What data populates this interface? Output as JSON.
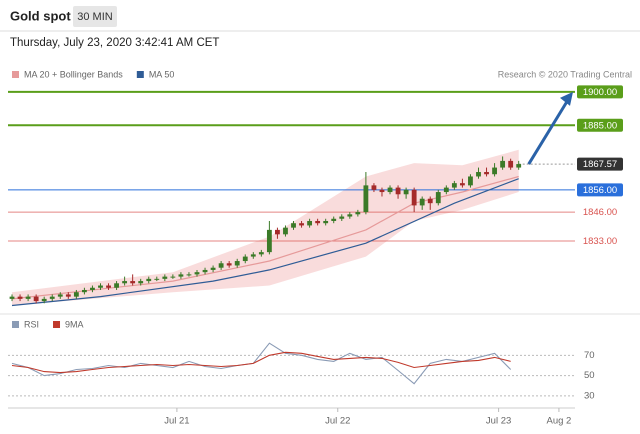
{
  "header": {
    "title": "Gold spot",
    "timeframe": "30 MIN",
    "timestamp": "Thursday, July 23, 2020 3:42:41 AM CET"
  },
  "chart_data": [
    {
      "type": "candlestick",
      "credit": "Research © 2020 Trading Central",
      "xlim": [
        -0.5,
        70
      ],
      "ylim": [
        1802,
        1904
      ],
      "xticks": [
        {
          "value": 20.5,
          "label": "Jul 21"
        },
        {
          "value": 40.5,
          "label": "Jul 22"
        },
        {
          "value": 60.5,
          "label": "Jul 23"
        },
        {
          "value": 68,
          "label": "Aug 2"
        }
      ],
      "up_color": "#3b7a28",
      "down_color": "#a52a2a",
      "candles": {
        "open": [
          1807,
          1808,
          1807,
          1808,
          1806,
          1807,
          1808,
          1809,
          1808,
          1810,
          1811,
          1812,
          1813,
          1812,
          1814,
          1815,
          1814,
          1815,
          1816,
          1816,
          1817,
          1817,
          1818,
          1818,
          1819,
          1820,
          1821,
          1823,
          1822,
          1824,
          1826,
          1827,
          1828,
          1838,
          1836,
          1839,
          1841,
          1840,
          1842,
          1841,
          1842,
          1843,
          1844,
          1845,
          1846,
          1858,
          1856,
          1855,
          1857,
          1854,
          1856,
          1849,
          1852,
          1850,
          1855,
          1857,
          1859,
          1858,
          1862,
          1864,
          1863,
          1866,
          1869,
          1866
        ],
        "high": [
          1809,
          1809,
          1809,
          1809,
          1808,
          1809,
          1810,
          1810,
          1811,
          1812,
          1813,
          1814,
          1814,
          1815,
          1817,
          1818,
          1816,
          1817,
          1817,
          1818,
          1818,
          1819,
          1819,
          1820,
          1821,
          1822,
          1824,
          1824,
          1825,
          1827,
          1828,
          1829,
          1842,
          1839,
          1840,
          1842,
          1842,
          1843,
          1843,
          1843,
          1844,
          1845,
          1846,
          1847,
          1864,
          1859,
          1857,
          1858,
          1858,
          1857,
          1857,
          1853,
          1853,
          1856,
          1858,
          1860,
          1861,
          1863,
          1866,
          1866,
          1868,
          1871,
          1870,
          1869
        ],
        "low": [
          1806,
          1806,
          1806,
          1805,
          1805,
          1806,
          1807,
          1807,
          1807,
          1809,
          1810,
          1811,
          1811,
          1811,
          1813,
          1813,
          1813,
          1814,
          1815,
          1815,
          1816,
          1816,
          1817,
          1817,
          1818,
          1819,
          1820,
          1821,
          1821,
          1823,
          1825,
          1826,
          1827,
          1834,
          1835,
          1838,
          1839,
          1839,
          1840,
          1840,
          1841,
          1842,
          1843,
          1844,
          1845,
          1855,
          1853,
          1854,
          1852,
          1852,
          1846,
          1847,
          1847,
          1849,
          1854,
          1856,
          1857,
          1857,
          1861,
          1862,
          1862,
          1865,
          1865,
          1865
        ],
        "close": [
          1808,
          1807,
          1808,
          1806,
          1807,
          1808,
          1809,
          1808,
          1810,
          1811,
          1812,
          1813,
          1812,
          1814,
          1815,
          1814,
          1815,
          1816,
          1816,
          1817,
          1817,
          1818,
          1818,
          1819,
          1820,
          1821,
          1823,
          1822,
          1824,
          1826,
          1827,
          1828,
          1838,
          1836,
          1839,
          1841,
          1840,
          1842,
          1841,
          1842,
          1843,
          1844,
          1845,
          1846,
          1858,
          1856,
          1855,
          1857,
          1854,
          1856,
          1849,
          1852,
          1850,
          1855,
          1857,
          1859,
          1858,
          1862,
          1864,
          1863,
          1866,
          1869,
          1866,
          1867.57
        ]
      },
      "series": [
        {
          "name": "MA 20 + Bollinger Bands",
          "color": "#e69a9a",
          "band_color": "#f8d3d3",
          "x": [
            0,
            20,
            32,
            44,
            50,
            56,
            63
          ],
          "values": [
            1807,
            1815,
            1824,
            1838,
            1850,
            1855,
            1862
          ],
          "upper": [
            1810,
            1819,
            1835,
            1862,
            1868,
            1867,
            1874
          ],
          "lower": [
            1804,
            1810,
            1813,
            1826,
            1842,
            1847,
            1855
          ]
        },
        {
          "name": "MA 50",
          "color": "#2f5c96",
          "x": [
            0,
            11,
            25,
            32,
            44,
            55,
            63
          ],
          "values": [
            1804,
            1808,
            1815,
            1820,
            1832,
            1850,
            1861
          ]
        }
      ],
      "levels": [
        {
          "value": 1900,
          "label": "1900.00",
          "color": "#5a9e1a",
          "style": "box"
        },
        {
          "value": 1885,
          "label": "1885.00",
          "color": "#5a9e1a",
          "style": "box"
        },
        {
          "value": 1867.57,
          "label": "1867.57",
          "color": "#333333",
          "style": "current"
        },
        {
          "value": 1856,
          "label": "1856.00",
          "color": "#2a6fdb",
          "style": "box"
        },
        {
          "value": 1846,
          "label": "1846.00",
          "color": "#d9534f",
          "style": "text"
        },
        {
          "value": 1833,
          "label": "1833.00",
          "color": "#d9534f",
          "style": "text"
        }
      ]
    },
    {
      "type": "line",
      "xlim": [
        -0.5,
        70
      ],
      "ylim": [
        21,
        95
      ],
      "yticks": [
        70,
        50,
        30
      ],
      "grid": true,
      "x": [
        0,
        2,
        4,
        6,
        8,
        10,
        12,
        14,
        16,
        18,
        20,
        22,
        24,
        26,
        28,
        30,
        32,
        34,
        36,
        38,
        40,
        42,
        44,
        46,
        48,
        50,
        52,
        54,
        56,
        58,
        60,
        62
      ],
      "series": [
        {
          "name": "RSI",
          "color": "#8a9bb5",
          "values": [
            62,
            58,
            50,
            52,
            56,
            57,
            60,
            58,
            62,
            60,
            58,
            64,
            59,
            57,
            60,
            62,
            82,
            72,
            70,
            66,
            64,
            72,
            66,
            68,
            55,
            42,
            62,
            66,
            64,
            68,
            72,
            56
          ]
        },
        {
          "name": "9MA",
          "color": "#c0392b",
          "values": [
            60,
            58,
            54,
            53,
            54,
            56,
            58,
            59,
            60,
            61,
            60,
            61,
            60,
            59,
            60,
            62,
            70,
            73,
            72,
            69,
            66,
            67,
            68,
            67,
            63,
            58,
            60,
            62,
            64,
            65,
            68,
            64
          ]
        }
      ]
    }
  ]
}
